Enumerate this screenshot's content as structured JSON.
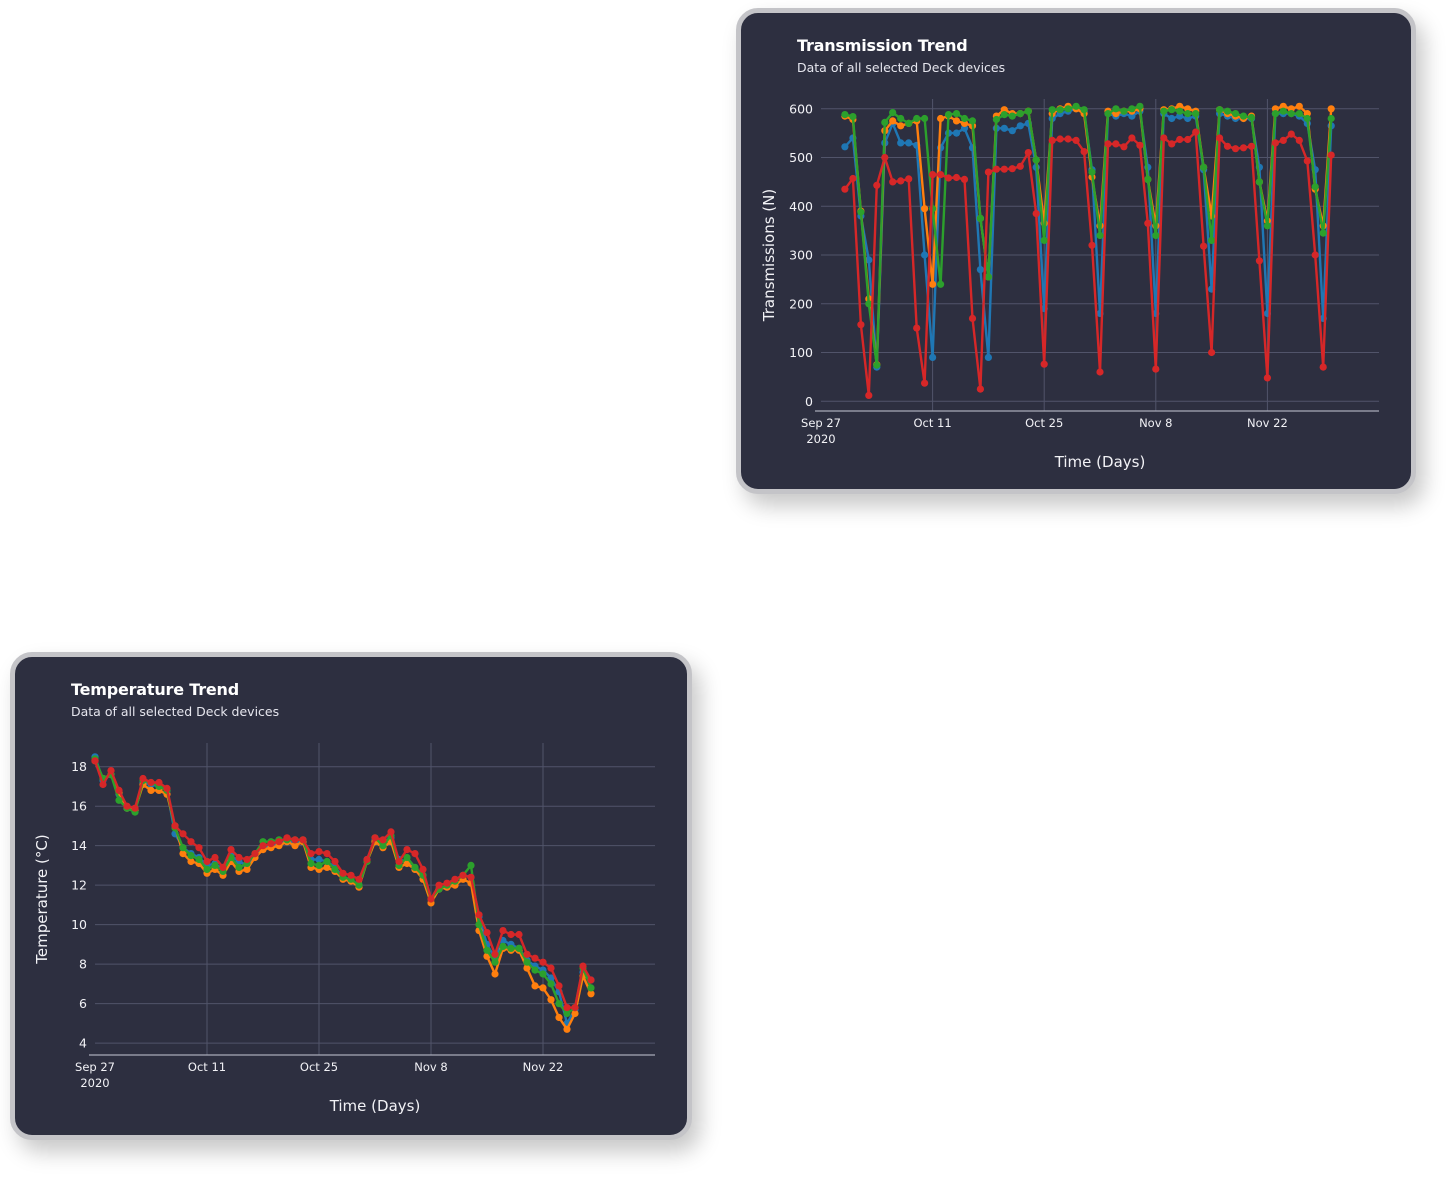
{
  "colors": {
    "card_bg": "#2d2f40",
    "grid": "#51546a",
    "blue": "#1f77b4",
    "orange": "#ff7f0e",
    "green": "#2ca02c",
    "red": "#d62728"
  },
  "charts": {
    "transmission": {
      "title": "Transmission Trend",
      "subtitle": "Data of all selected Deck devices"
    },
    "temperature": {
      "title": "Temperature Trend",
      "subtitle": "Data of all selected Deck devices"
    }
  },
  "chart_data": [
    {
      "id": "transmission",
      "type": "line",
      "title": "Transmission Trend",
      "subtitle": "Data of all selected Deck devices",
      "xlabel": "Time (Days)",
      "ylabel": "Transmissions (N)",
      "x_start": "2020-09-30",
      "xlim": [
        "2020-09-27",
        "2020-12-06"
      ],
      "ylim": [
        -20,
        620
      ],
      "yticks": [
        0,
        100,
        200,
        300,
        400,
        500,
        600
      ],
      "xticks": [
        {
          "date": "2020-09-27",
          "label": "Sep 27",
          "label2": "2020"
        },
        {
          "date": "2020-10-11",
          "label": "Oct 11",
          "label2": ""
        },
        {
          "date": "2020-10-25",
          "label": "Oct 25",
          "label2": ""
        },
        {
          "date": "2020-11-08",
          "label": "Nov 8",
          "label2": ""
        },
        {
          "date": "2020-11-22",
          "label": "Nov 22",
          "label2": ""
        }
      ],
      "grid": true,
      "series": [
        {
          "color": "#1f77b4",
          "values": [
            522,
            540,
            380,
            290,
            70,
            530,
            570,
            530,
            530,
            525,
            300,
            90,
            520,
            550,
            550,
            560,
            520,
            270,
            90,
            560,
            560,
            555,
            565,
            570,
            480,
            190,
            580,
            590,
            595,
            600,
            595,
            475,
            180,
            590,
            585,
            590,
            585,
            595,
            480,
            180,
            590,
            580,
            585,
            580,
            585,
            475,
            230,
            590,
            585,
            580,
            580,
            580,
            480,
            180,
            590,
            590,
            590,
            585,
            570,
            475,
            170,
            565
          ]
        },
        {
          "color": "#ff7f0e",
          "values": [
            585,
            578,
            390,
            210,
            75,
            555,
            575,
            565,
            570,
            575,
            395,
            240,
            580,
            585,
            575,
            570,
            565,
            375,
            255,
            585,
            598,
            590,
            590,
            595,
            495,
            365,
            590,
            600,
            605,
            600,
            590,
            460,
            360,
            595,
            590,
            595,
            595,
            600,
            455,
            360,
            598,
            600,
            605,
            600,
            595,
            480,
            380,
            598,
            590,
            585,
            580,
            585,
            450,
            370,
            600,
            605,
            600,
            605,
            590,
            435,
            360,
            600
          ]
        },
        {
          "color": "#2ca02c",
          "values": [
            588,
            584,
            388,
            200,
            74,
            572,
            592,
            580,
            570,
            580,
            580,
            395,
            240,
            588,
            590,
            580,
            575,
            375,
            255,
            578,
            588,
            585,
            590,
            595,
            495,
            330,
            598,
            598,
            600,
            605,
            598,
            470,
            340,
            590,
            600,
            595,
            600,
            605,
            455,
            340,
            595,
            598,
            595,
            590,
            590,
            480,
            330,
            598,
            595,
            590,
            585,
            582,
            450,
            360,
            590,
            595,
            590,
            590,
            580,
            440,
            345,
            580
          ]
        },
        {
          "color": "#d62728",
          "values": [
            435,
            457,
            157,
            12,
            443,
            500,
            450,
            452,
            456,
            150,
            37,
            465,
            465,
            458,
            459,
            455,
            170,
            25,
            470,
            476,
            476,
            477,
            482,
            510,
            385,
            76,
            535,
            538,
            538,
            535,
            512,
            320,
            60,
            528,
            528,
            522,
            540,
            525,
            365,
            66,
            540,
            528,
            537,
            537,
            552,
            318,
            100,
            540,
            523,
            518,
            520,
            523,
            288,
            48,
            530,
            535,
            548,
            535,
            493,
            300,
            70,
            505
          ]
        }
      ]
    },
    {
      "id": "temperature",
      "type": "line",
      "title": "Temperature Trend",
      "subtitle": "Data of all selected Deck devices",
      "xlabel": "Time (Days)",
      "ylabel": "Temperature (°C)",
      "x_start": "2020-09-27",
      "xlim": [
        "2020-09-27",
        "2020-12-06"
      ],
      "ylim": [
        3.4,
        19.2
      ],
      "yticks": [
        4,
        6,
        8,
        10,
        12,
        14,
        16,
        18
      ],
      "xticks": [
        {
          "date": "2020-09-27",
          "label": "Sep 27",
          "label2": "2020"
        },
        {
          "date": "2020-10-11",
          "label": "Oct 11",
          "label2": ""
        },
        {
          "date": "2020-10-25",
          "label": "Oct 25",
          "label2": ""
        },
        {
          "date": "2020-11-08",
          "label": "Nov 8",
          "label2": ""
        },
        {
          "date": "2020-11-22",
          "label": "Nov 22",
          "label2": ""
        }
      ],
      "grid": true,
      "series": [
        {
          "color": "#1f77b4",
          "values": [
            18.5,
            17.3,
            17.6,
            16.6,
            15.9,
            15.8,
            17.2,
            17.1,
            17.0,
            16.8,
            14.6,
            13.9,
            13.6,
            13.4,
            13.0,
            13.1,
            12.8,
            13.5,
            13.2,
            13.0,
            13.5,
            13.9,
            14.0,
            14.1,
            14.2,
            14.2,
            14.2,
            13.3,
            13.3,
            13.2,
            12.9,
            12.4,
            12.3,
            12.0,
            13.3,
            14.3,
            14.2,
            14.4,
            13.3,
            13.2,
            12.8,
            12.5,
            11.3,
            11.8,
            11.9,
            12.2,
            12.5,
            12.4,
            10.4,
            9.0,
            8.3,
            9.2,
            9.0,
            8.8,
            8.2,
            7.9,
            7.7,
            7.3,
            6.6,
            5.0,
            5.7,
            7.6,
            7.2
          ]
        },
        {
          "color": "#ff7f0e",
          "values": [
            18.3,
            17.4,
            17.6,
            16.7,
            15.9,
            15.8,
            17.1,
            16.8,
            16.8,
            16.6,
            15.0,
            13.6,
            13.2,
            13.1,
            12.6,
            12.8,
            12.5,
            13.2,
            12.7,
            12.8,
            13.4,
            13.8,
            13.9,
            14.0,
            14.2,
            14.0,
            14.2,
            12.9,
            12.8,
            12.9,
            12.7,
            12.3,
            12.2,
            11.9,
            13.2,
            14.2,
            13.9,
            14.2,
            12.9,
            13.1,
            12.8,
            12.3,
            11.1,
            11.8,
            11.9,
            12.0,
            12.3,
            12.1,
            9.7,
            8.4,
            7.5,
            8.8,
            8.7,
            8.7,
            7.8,
            6.9,
            6.8,
            6.2,
            5.3,
            4.7,
            5.5,
            7.4,
            6.5
          ]
        },
        {
          "color": "#2ca02c",
          "values": [
            18.4,
            17.4,
            17.6,
            16.3,
            15.9,
            15.7,
            17.3,
            17.2,
            17.0,
            16.8,
            14.9,
            13.9,
            13.5,
            13.3,
            12.8,
            13.0,
            12.7,
            13.4,
            12.9,
            13.1,
            13.6,
            14.2,
            14.2,
            14.3,
            14.3,
            14.3,
            14.3,
            13.1,
            13.0,
            13.2,
            12.8,
            12.4,
            12.3,
            12.0,
            13.2,
            14.4,
            14.0,
            14.5,
            13.0,
            13.4,
            12.9,
            12.5,
            11.3,
            11.8,
            12.0,
            12.2,
            12.5,
            13.0,
            10.0,
            8.7,
            8.1,
            8.9,
            8.8,
            8.8,
            8.1,
            7.7,
            7.5,
            7.0,
            6.0,
            5.5,
            5.8,
            7.8,
            6.8
          ]
        },
        {
          "color": "#d62728",
          "values": [
            18.3,
            17.1,
            17.8,
            16.8,
            16.0,
            15.9,
            17.4,
            17.2,
            17.2,
            16.9,
            15.0,
            14.6,
            14.2,
            13.9,
            13.2,
            13.4,
            12.9,
            13.8,
            13.4,
            13.3,
            13.6,
            14.0,
            14.1,
            14.2,
            14.4,
            14.3,
            14.3,
            13.6,
            13.7,
            13.6,
            13.2,
            12.6,
            12.5,
            12.3,
            13.3,
            14.4,
            14.3,
            14.7,
            13.2,
            13.8,
            13.6,
            12.8,
            11.3,
            12.0,
            12.1,
            12.3,
            12.5,
            12.4,
            10.5,
            9.6,
            8.5,
            9.7,
            9.5,
            9.5,
            8.5,
            8.3,
            8.1,
            7.8,
            6.9,
            5.8,
            5.8,
            7.9,
            7.2
          ]
        }
      ]
    }
  ]
}
